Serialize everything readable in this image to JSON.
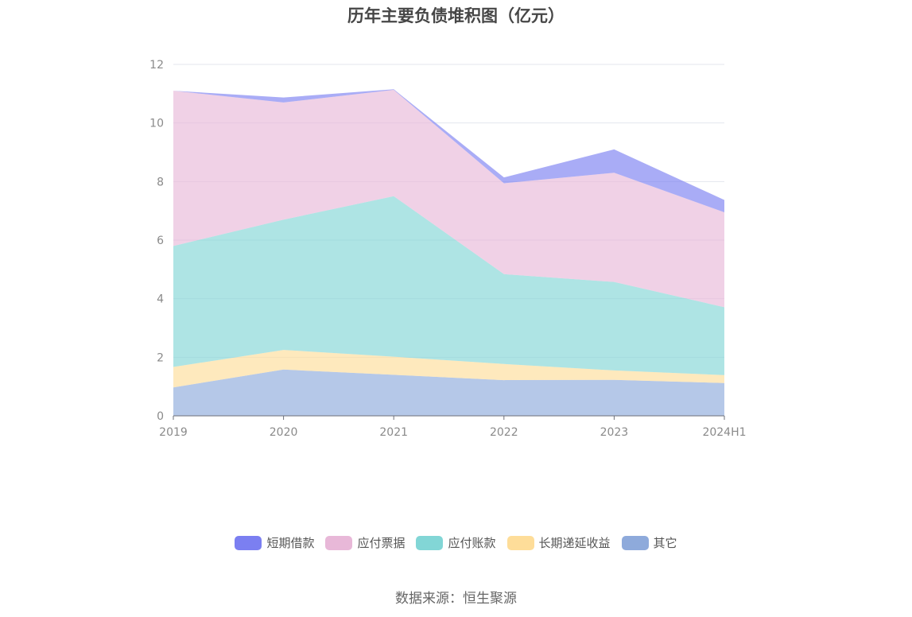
{
  "chart_data": {
    "type": "area",
    "stacked": true,
    "title": "历年主要负债堆积图（亿元）",
    "categories": [
      "2019",
      "2020",
      "2021",
      "2022",
      "2023",
      "2024H1"
    ],
    "ylim": [
      0,
      12
    ],
    "yticks": [
      0,
      2,
      4,
      6,
      8,
      10,
      12
    ],
    "grid": true,
    "legend_position": "bottom",
    "series": [
      {
        "name": "其它",
        "color": "#8eaadb",
        "values": [
          0.97,
          1.58,
          1.4,
          1.22,
          1.23,
          1.12
        ]
      },
      {
        "name": "长期递延收益",
        "color": "#fedd99",
        "values": [
          0.7,
          0.67,
          0.62,
          0.55,
          0.32,
          0.27
        ]
      },
      {
        "name": "应付账款",
        "color": "#82d6d6",
        "values": [
          4.13,
          4.45,
          5.48,
          3.07,
          3.02,
          2.32
        ]
      },
      {
        "name": "应付票据",
        "color": "#e8b8d8",
        "values": [
          5.3,
          4.0,
          3.63,
          3.1,
          3.73,
          3.24
        ]
      },
      {
        "name": "短期借款",
        "color": "#7b7ff1",
        "values": [
          0.0,
          0.17,
          0.02,
          0.2,
          0.8,
          0.42
        ]
      }
    ]
  },
  "legend_order": [
    "短期借款",
    "应付票据",
    "应付账款",
    "长期递延收益",
    "其它"
  ],
  "source": "数据来源：恒生聚源"
}
